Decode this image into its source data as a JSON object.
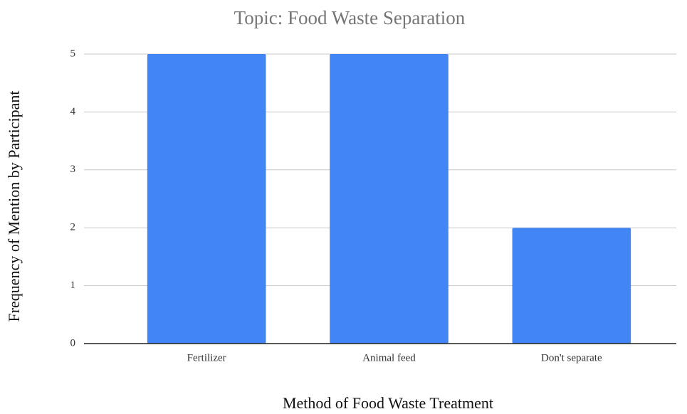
{
  "chart_data": {
    "type": "bar",
    "title": "Topic: Food Waste Separation",
    "x_label": "Method of Food Waste Treatment",
    "y_label": "Frequency of Mention by Participant",
    "categories": [
      "Fertilizer",
      "Animal feed",
      "Don't separate"
    ],
    "values": [
      5,
      5,
      2
    ],
    "color": "#4285f4",
    "ylim": [
      0,
      5
    ],
    "yticks": [
      0,
      1,
      2,
      3,
      4,
      5
    ],
    "grid": true
  }
}
